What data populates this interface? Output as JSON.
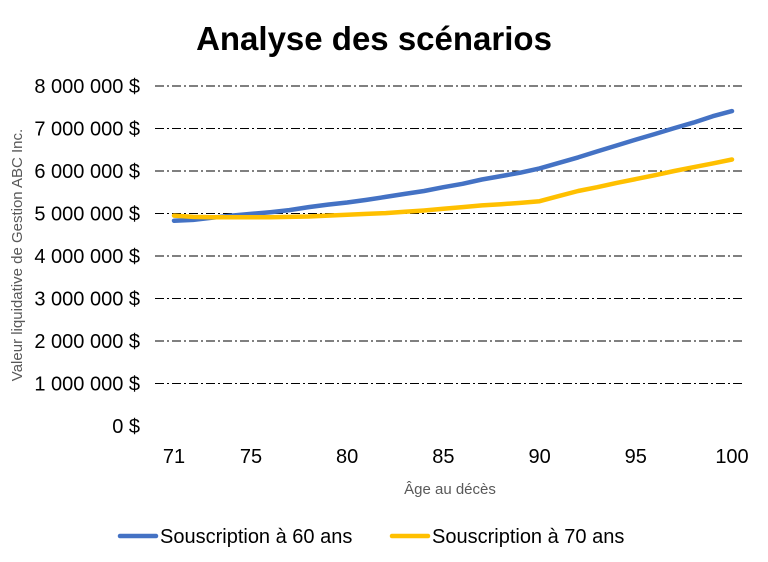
{
  "chart_data": {
    "type": "line",
    "title": "Analyse des scénarios",
    "xlabel": "Âge au décès",
    "ylabel": "Valeur liquidative de Gestion ABC Inc.",
    "x": [
      71,
      72,
      73,
      74,
      75,
      76,
      77,
      78,
      79,
      80,
      81,
      82,
      83,
      84,
      85,
      86,
      87,
      88,
      89,
      90,
      91,
      92,
      93,
      94,
      95,
      96,
      97,
      98,
      99,
      100
    ],
    "xticks": [
      71,
      75,
      80,
      85,
      90,
      95,
      100
    ],
    "xtick_labels": [
      "71",
      "75",
      "80",
      "85",
      "90",
      "95",
      "100"
    ],
    "ylim": [
      0,
      8000000
    ],
    "yticks": [
      0,
      1000000,
      2000000,
      3000000,
      4000000,
      5000000,
      6000000,
      7000000,
      8000000
    ],
    "ytick_labels": [
      "0 $",
      "1 000 000 $",
      "2 000 000 $",
      "3 000 000 $",
      "4 000 000 $",
      "5 000 000 $",
      "6 000 000 $",
      "7 000 000 $",
      "8 000 000 $"
    ],
    "grid": true,
    "legend_position": "bottom",
    "series": [
      {
        "name": "Souscription à 60 ans",
        "color": "#4472C4",
        "values": [
          4830000,
          4850000,
          4900000,
          4950000,
          4990000,
          5030000,
          5080000,
          5150000,
          5210000,
          5260000,
          5320000,
          5390000,
          5460000,
          5530000,
          5620000,
          5700000,
          5800000,
          5880000,
          5960000,
          6060000,
          6190000,
          6320000,
          6460000,
          6600000,
          6740000,
          6870000,
          7010000,
          7140000,
          7290000,
          7410000
        ]
      },
      {
        "name": "Souscription à 70 ans",
        "color": "#FFC000",
        "values": [
          4950000,
          4920000,
          4910000,
          4910000,
          4910000,
          4910000,
          4920000,
          4930000,
          4950000,
          4970000,
          4990000,
          5010000,
          5040000,
          5070000,
          5110000,
          5150000,
          5190000,
          5220000,
          5250000,
          5290000,
          5410000,
          5530000,
          5620000,
          5720000,
          5810000,
          5900000,
          6000000,
          6090000,
          6180000,
          6270000
        ]
      }
    ]
  }
}
